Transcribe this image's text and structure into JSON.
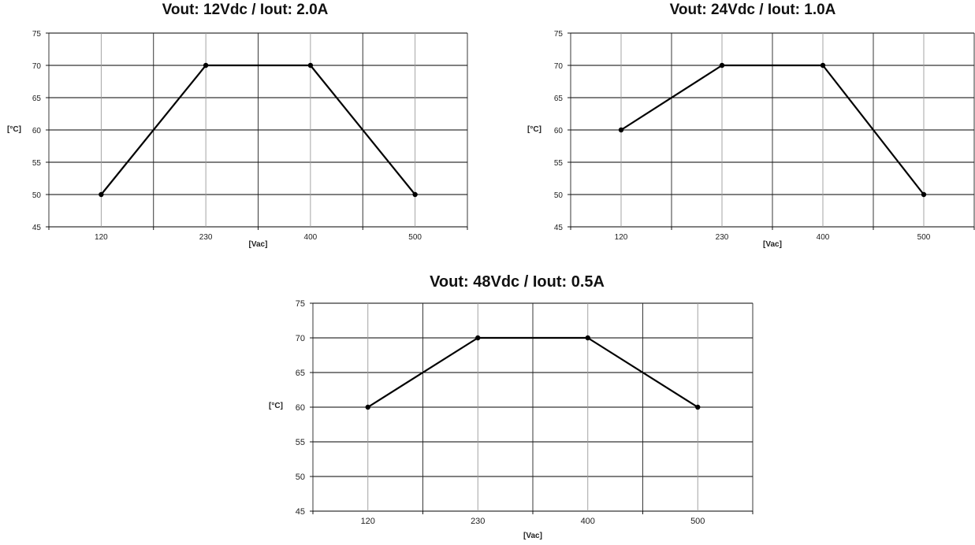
{
  "chart_data": [
    {
      "type": "line",
      "title": "Vout: 12Vdc / Iout: 2.0A",
      "xlabel": "[Vac]",
      "ylabel": "[°C]",
      "categories": [
        "120",
        "230",
        "400",
        "500"
      ],
      "values": [
        50,
        70,
        70,
        50
      ],
      "ylim": [
        45,
        75
      ],
      "yticks": [
        45,
        50,
        55,
        60,
        65,
        70,
        75
      ],
      "grid": true,
      "legend": "none",
      "line_color": "#000000"
    },
    {
      "type": "line",
      "title": "Vout: 24Vdc / Iout: 1.0A",
      "xlabel": "[Vac]",
      "ylabel": "[°C]",
      "categories": [
        "120",
        "230",
        "400",
        "500"
      ],
      "values": [
        60,
        70,
        70,
        50
      ],
      "ylim": [
        45,
        75
      ],
      "yticks": [
        45,
        50,
        55,
        60,
        65,
        70,
        75
      ],
      "grid": true,
      "legend": "none",
      "line_color": "#000000"
    },
    {
      "type": "line",
      "title": "Vout: 48Vdc / Iout: 0.5A",
      "xlabel": "[Vac]",
      "ylabel": "[°C]",
      "categories": [
        "120",
        "230",
        "400",
        "500"
      ],
      "values": [
        60,
        70,
        70,
        60
      ],
      "ylim": [
        45,
        75
      ],
      "yticks": [
        45,
        50,
        55,
        60,
        65,
        70,
        75
      ],
      "grid": true,
      "legend": "none",
      "line_color": "#000000"
    }
  ]
}
